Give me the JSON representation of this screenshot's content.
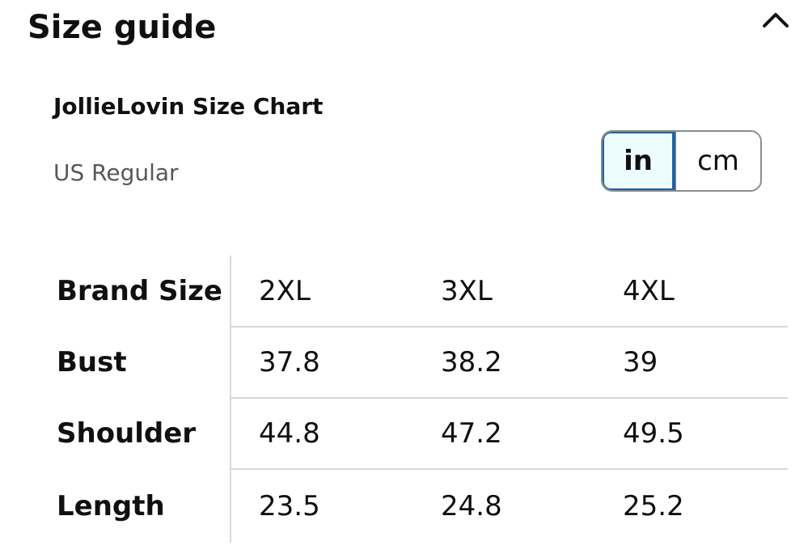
{
  "header": {
    "title": "Size guide",
    "collapse_icon": "chevron-up-icon"
  },
  "chart": {
    "title": "JollieLovin Size Chart",
    "region": "US Regular"
  },
  "units": {
    "options": [
      "in",
      "cm"
    ],
    "selected": "in"
  },
  "table": {
    "rows": [
      {
        "label": "Brand Size",
        "values": [
          "2XL",
          "3XL",
          "4XL"
        ]
      },
      {
        "label": "Bust",
        "values": [
          "37.8",
          "38.2",
          "39"
        ]
      },
      {
        "label": "Shoulder",
        "values": [
          "44.8",
          "47.2",
          "49.5"
        ]
      },
      {
        "label": "Length",
        "values": [
          "23.5",
          "24.8",
          "25.2"
        ]
      }
    ]
  },
  "colors": {
    "selected_border": "#2162a1",
    "selected_bg": "#edfdff",
    "muted_text": "#565959",
    "divider": "#d5d9d9"
  }
}
